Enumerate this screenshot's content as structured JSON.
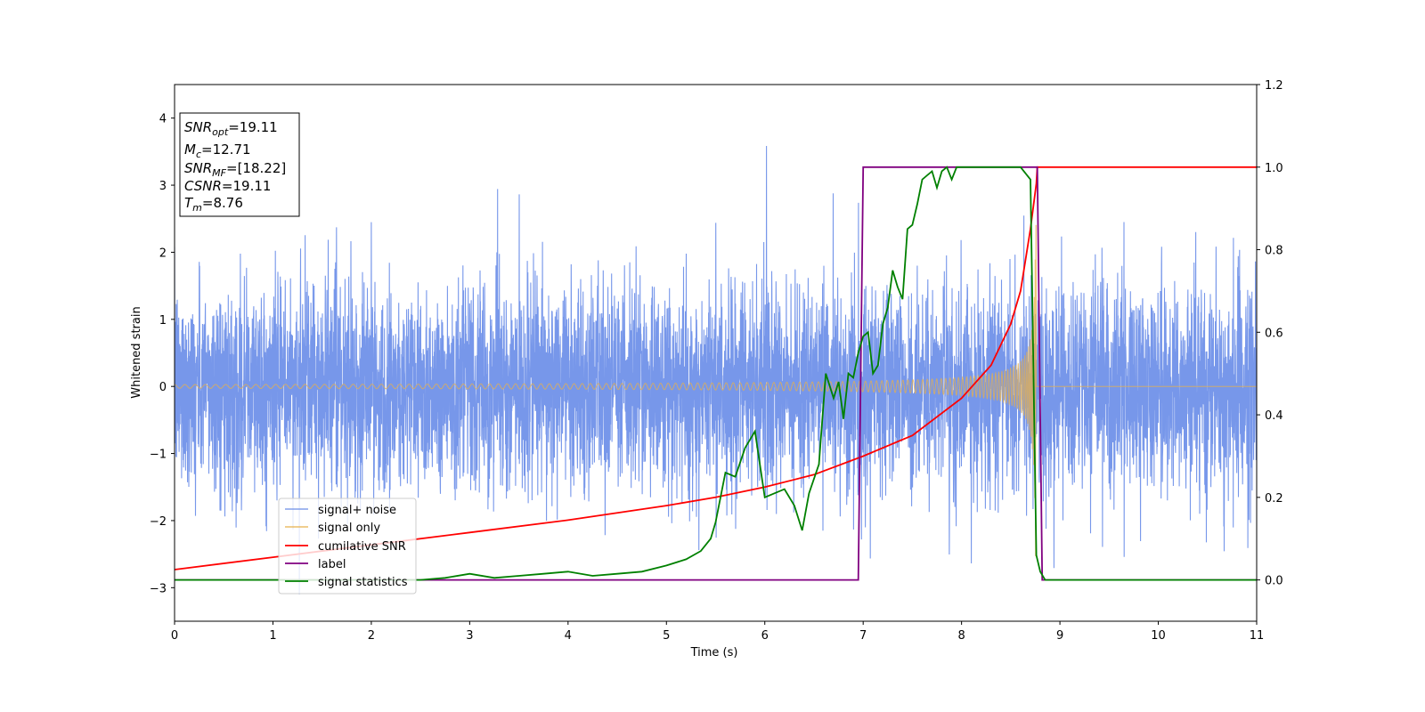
{
  "chart_data": {
    "type": "line",
    "xlabel": "Time (s)",
    "ylabel": "Whitened strain",
    "xlim": [
      0,
      11
    ],
    "ylim_left": [
      -3.5,
      4.5
    ],
    "ylim_right": [
      -0.1,
      1.2
    ],
    "x_ticks": [
      "0",
      "1",
      "2",
      "3",
      "4",
      "5",
      "6",
      "7",
      "8",
      "9",
      "10",
      "11"
    ],
    "y_ticks_left": [
      "−3",
      "−2",
      "−1",
      "0",
      "1",
      "2",
      "3",
      "4"
    ],
    "y_ticks_right": [
      "0.0",
      "0.2",
      "0.4",
      "0.6",
      "0.8",
      "1.0",
      "1.2"
    ],
    "grid": false,
    "legend_position": "lower-left",
    "annotation": {
      "lines": [
        {
          "base": "SNR",
          "sub": "opt",
          "value": "=19.11"
        },
        {
          "base": "M",
          "sub": "c",
          "value": "=12.71"
        },
        {
          "base": "SNR",
          "sub": "MF",
          "value": "=[18.22]"
        },
        {
          "base": "CSNR",
          "sub": "",
          "value": "=19.11"
        },
        {
          "base": "T",
          "sub": "m",
          "value": "=8.76"
        }
      ]
    },
    "series": [
      {
        "name": "signal+ noise",
        "color": "#6b8ee8",
        "axis": "left",
        "noise_std": 0.75,
        "x_end": 11
      },
      {
        "name": "signal only",
        "color": "#e8b04a",
        "axis": "left",
        "merger_time": 8.76,
        "amplitude_start": 0.05,
        "amplitude_peak": 2.8
      },
      {
        "name": "cumilative SNR",
        "color": "#ff0000",
        "axis": "right",
        "x": [
          0,
          1,
          2,
          3,
          4,
          5,
          5.5,
          6,
          6.5,
          7,
          7.5,
          8,
          8.3,
          8.5,
          8.6,
          8.7,
          8.76,
          8.77,
          11
        ],
        "y": [
          0.025,
          0.055,
          0.085,
          0.115,
          0.145,
          0.18,
          0.2,
          0.225,
          0.255,
          0.3,
          0.35,
          0.44,
          0.52,
          0.62,
          0.7,
          0.85,
          0.96,
          1.0,
          1.0
        ]
      },
      {
        "name": "label",
        "color": "#800080",
        "axis": "right",
        "x": [
          0,
          6.95,
          7.0,
          8.77,
          8.82,
          11
        ],
        "y": [
          0.0,
          0.0,
          1.0,
          1.0,
          0.0,
          0.0
        ]
      },
      {
        "name": "signal statistics",
        "color": "#008000",
        "axis": "right",
        "x": [
          0,
          2.5,
          2.75,
          3.0,
          3.25,
          3.5,
          3.75,
          4.0,
          4.25,
          4.5,
          4.75,
          5.0,
          5.2,
          5.35,
          5.45,
          5.5,
          5.6,
          5.7,
          5.8,
          5.9,
          6.0,
          6.1,
          6.2,
          6.3,
          6.38,
          6.45,
          6.55,
          6.62,
          6.7,
          6.75,
          6.8,
          6.85,
          6.9,
          6.95,
          7.0,
          7.05,
          7.1,
          7.15,
          7.2,
          7.25,
          7.3,
          7.35,
          7.4,
          7.45,
          7.5,
          7.55,
          7.6,
          7.65,
          7.7,
          7.75,
          7.8,
          7.85,
          7.9,
          7.95,
          8.0,
          8.05,
          8.1,
          8.2,
          8.3,
          8.4,
          8.5,
          8.6,
          8.7,
          8.76,
          8.8,
          8.85,
          11
        ],
        "y": [
          0.0,
          0.0,
          0.005,
          0.015,
          0.005,
          0.01,
          0.015,
          0.02,
          0.01,
          0.015,
          0.02,
          0.035,
          0.05,
          0.07,
          0.1,
          0.14,
          0.26,
          0.25,
          0.32,
          0.36,
          0.2,
          0.21,
          0.22,
          0.18,
          0.12,
          0.21,
          0.28,
          0.5,
          0.44,
          0.48,
          0.39,
          0.5,
          0.49,
          0.55,
          0.59,
          0.6,
          0.5,
          0.52,
          0.62,
          0.66,
          0.75,
          0.71,
          0.68,
          0.85,
          0.86,
          0.91,
          0.97,
          0.98,
          0.99,
          0.95,
          0.99,
          1.0,
          0.97,
          1.0,
          1.0,
          1.0,
          1.0,
          1.0,
          1.0,
          1.0,
          1.0,
          1.0,
          0.97,
          0.06,
          0.02,
          0.0,
          0.0
        ]
      }
    ]
  }
}
